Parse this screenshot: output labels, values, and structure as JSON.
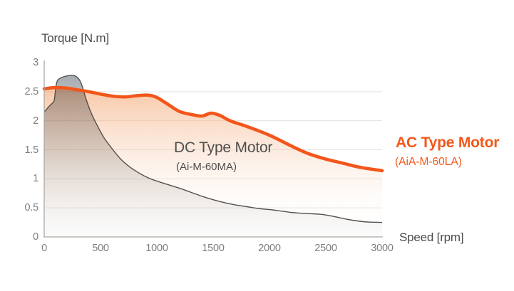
{
  "titles": {
    "y_axis": "Torque [N.m]",
    "x_axis": "Speed [rpm]"
  },
  "labels": {
    "dc_name": "DC Type Motor",
    "dc_model": "(Ai-M-60MA)",
    "ac_name": "AC Type Motor",
    "ac_model": "(AiA-M-60LA)"
  },
  "colors": {
    "ac_orange": "#F3561A",
    "ac_text_orange": "#F4581A",
    "dc_gray_line": "#55504D",
    "axis_line": "#AAA7A4",
    "grid_line": "#E5E3E1",
    "tick_text": "#7D7D7D",
    "title_text": "#4B4B4B",
    "dc_label_text": "#4F4F4F"
  },
  "chart_data": {
    "type": "line",
    "title": "",
    "xlabel": "Speed [rpm]",
    "ylabel": "Torque [N.m]",
    "xlim": [
      0,
      3000
    ],
    "ylim": [
      0,
      3
    ],
    "x_ticks": [
      0,
      500,
      1000,
      1500,
      2000,
      2500,
      3000
    ],
    "y_ticks": [
      0,
      0.5,
      1,
      1.5,
      2,
      2.5,
      3
    ],
    "grid": "horizontal, at 0.5 steps up to 2.5, none at 3.0",
    "legend_position": "labels beside curves",
    "series": [
      {
        "name": "AC Type Motor (AiA-M-60LA)",
        "color": "#F3561A",
        "style": "thick orange line with light orange area fill to zero",
        "points": [
          [
            0,
            2.55
          ],
          [
            100,
            2.57
          ],
          [
            200,
            2.56
          ],
          [
            300,
            2.53
          ],
          [
            420,
            2.49
          ],
          [
            520,
            2.45
          ],
          [
            620,
            2.42
          ],
          [
            720,
            2.41
          ],
          [
            820,
            2.43
          ],
          [
            920,
            2.44
          ],
          [
            1000,
            2.4
          ],
          [
            1100,
            2.28
          ],
          [
            1200,
            2.16
          ],
          [
            1300,
            2.11
          ],
          [
            1400,
            2.08
          ],
          [
            1480,
            2.13
          ],
          [
            1560,
            2.09
          ],
          [
            1650,
            2.0
          ],
          [
            1800,
            1.9
          ],
          [
            2000,
            1.75
          ],
          [
            2200,
            1.56
          ],
          [
            2350,
            1.43
          ],
          [
            2500,
            1.34
          ],
          [
            2650,
            1.27
          ],
          [
            2800,
            1.2
          ],
          [
            3000,
            1.14
          ]
        ]
      },
      {
        "name": "DC Type Motor (Ai-M-60MA)",
        "color": "#55504D",
        "style": "thin dark gray line with gray translucent area fill to zero",
        "points": [
          [
            0,
            2.15
          ],
          [
            40,
            2.24
          ],
          [
            70,
            2.3
          ],
          [
            90,
            2.36
          ],
          [
            105,
            2.6
          ],
          [
            125,
            2.71
          ],
          [
            180,
            2.76
          ],
          [
            260,
            2.78
          ],
          [
            310,
            2.71
          ],
          [
            340,
            2.58
          ],
          [
            370,
            2.38
          ],
          [
            420,
            2.12
          ],
          [
            470,
            1.92
          ],
          [
            530,
            1.71
          ],
          [
            610,
            1.5
          ],
          [
            690,
            1.32
          ],
          [
            800,
            1.15
          ],
          [
            920,
            1.02
          ],
          [
            1050,
            0.93
          ],
          [
            1200,
            0.84
          ],
          [
            1300,
            0.77
          ],
          [
            1400,
            0.7
          ],
          [
            1500,
            0.64
          ],
          [
            1600,
            0.59
          ],
          [
            1700,
            0.55
          ],
          [
            1800,
            0.52
          ],
          [
            1900,
            0.49
          ],
          [
            2050,
            0.46
          ],
          [
            2200,
            0.42
          ],
          [
            2350,
            0.4
          ],
          [
            2450,
            0.39
          ],
          [
            2550,
            0.36
          ],
          [
            2700,
            0.3
          ],
          [
            2850,
            0.26
          ],
          [
            3000,
            0.25
          ]
        ]
      }
    ]
  }
}
